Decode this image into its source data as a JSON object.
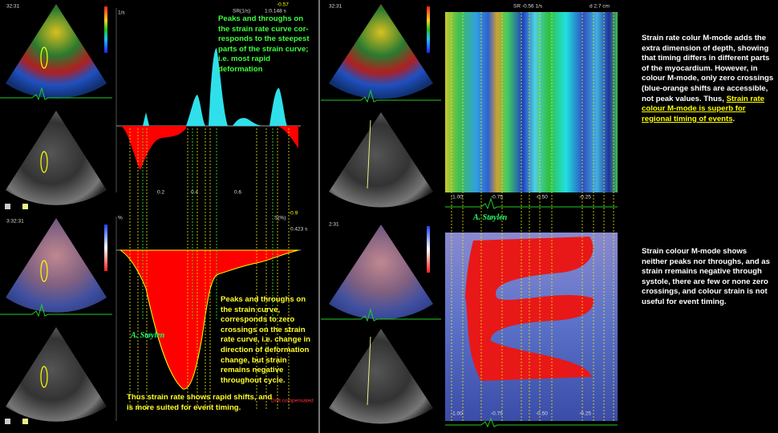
{
  "left_panel": {
    "strain_rate_note": "Peaks and throughs on the strain rate curve cor-responds to the steepest parts of the strain curve; i.e. most rapid deformation",
    "strain_note": "Peaks and throughs on the strain curve, corresponds to zero crossings on the strain rate curve, i.e. change in direction of deformation change, but strain remains negative throughout cycle.",
    "conclusion": "Thus strain rate shows rapid shifts, and is more suited for event timing.",
    "signature": "A. Støylen",
    "sr_plot": {
      "label": "SR(1/s)",
      "reading": "-0.57",
      "time": "1:0.148 s",
      "ticks": [
        "0.2",
        "0.4",
        "0.6"
      ]
    },
    "strain_plot": {
      "label": "S(%)",
      "reading": "-0.9",
      "time": "0.423 s",
      "drift": "Drift compensated"
    },
    "clock_top": "32:31",
    "clock_bottom": "3:32:31"
  },
  "right_panel": {
    "sr_mmode_note": {
      "text": "Strain rate colur M-mode adds the extra dimension of depth, showing that timing differs in different parts of the myocardium. However, in colour M-mode, only zero crossings (blue-orange shifts are accessible, not peak values. Thus, ",
      "underlined": "Strain rate colour M-mode is superb for regional timing of events",
      "end": "."
    },
    "strain_mmode_note": "Strain colour M-mode shows neither peaks nor throughs,  and as strain rremains negative through systole, there are few or none zero crossings, and colour strain is not useful for event timing.",
    "signature": "A. Støylen",
    "sr_header": "SR -0.56 1/s",
    "depth": "d 2.7 cm",
    "time_ticks": [
      "-1.00",
      "-0.75",
      "-0.50",
      "-0.25"
    ],
    "clock_top": "32:31",
    "clock_bottom": "2:31"
  }
}
